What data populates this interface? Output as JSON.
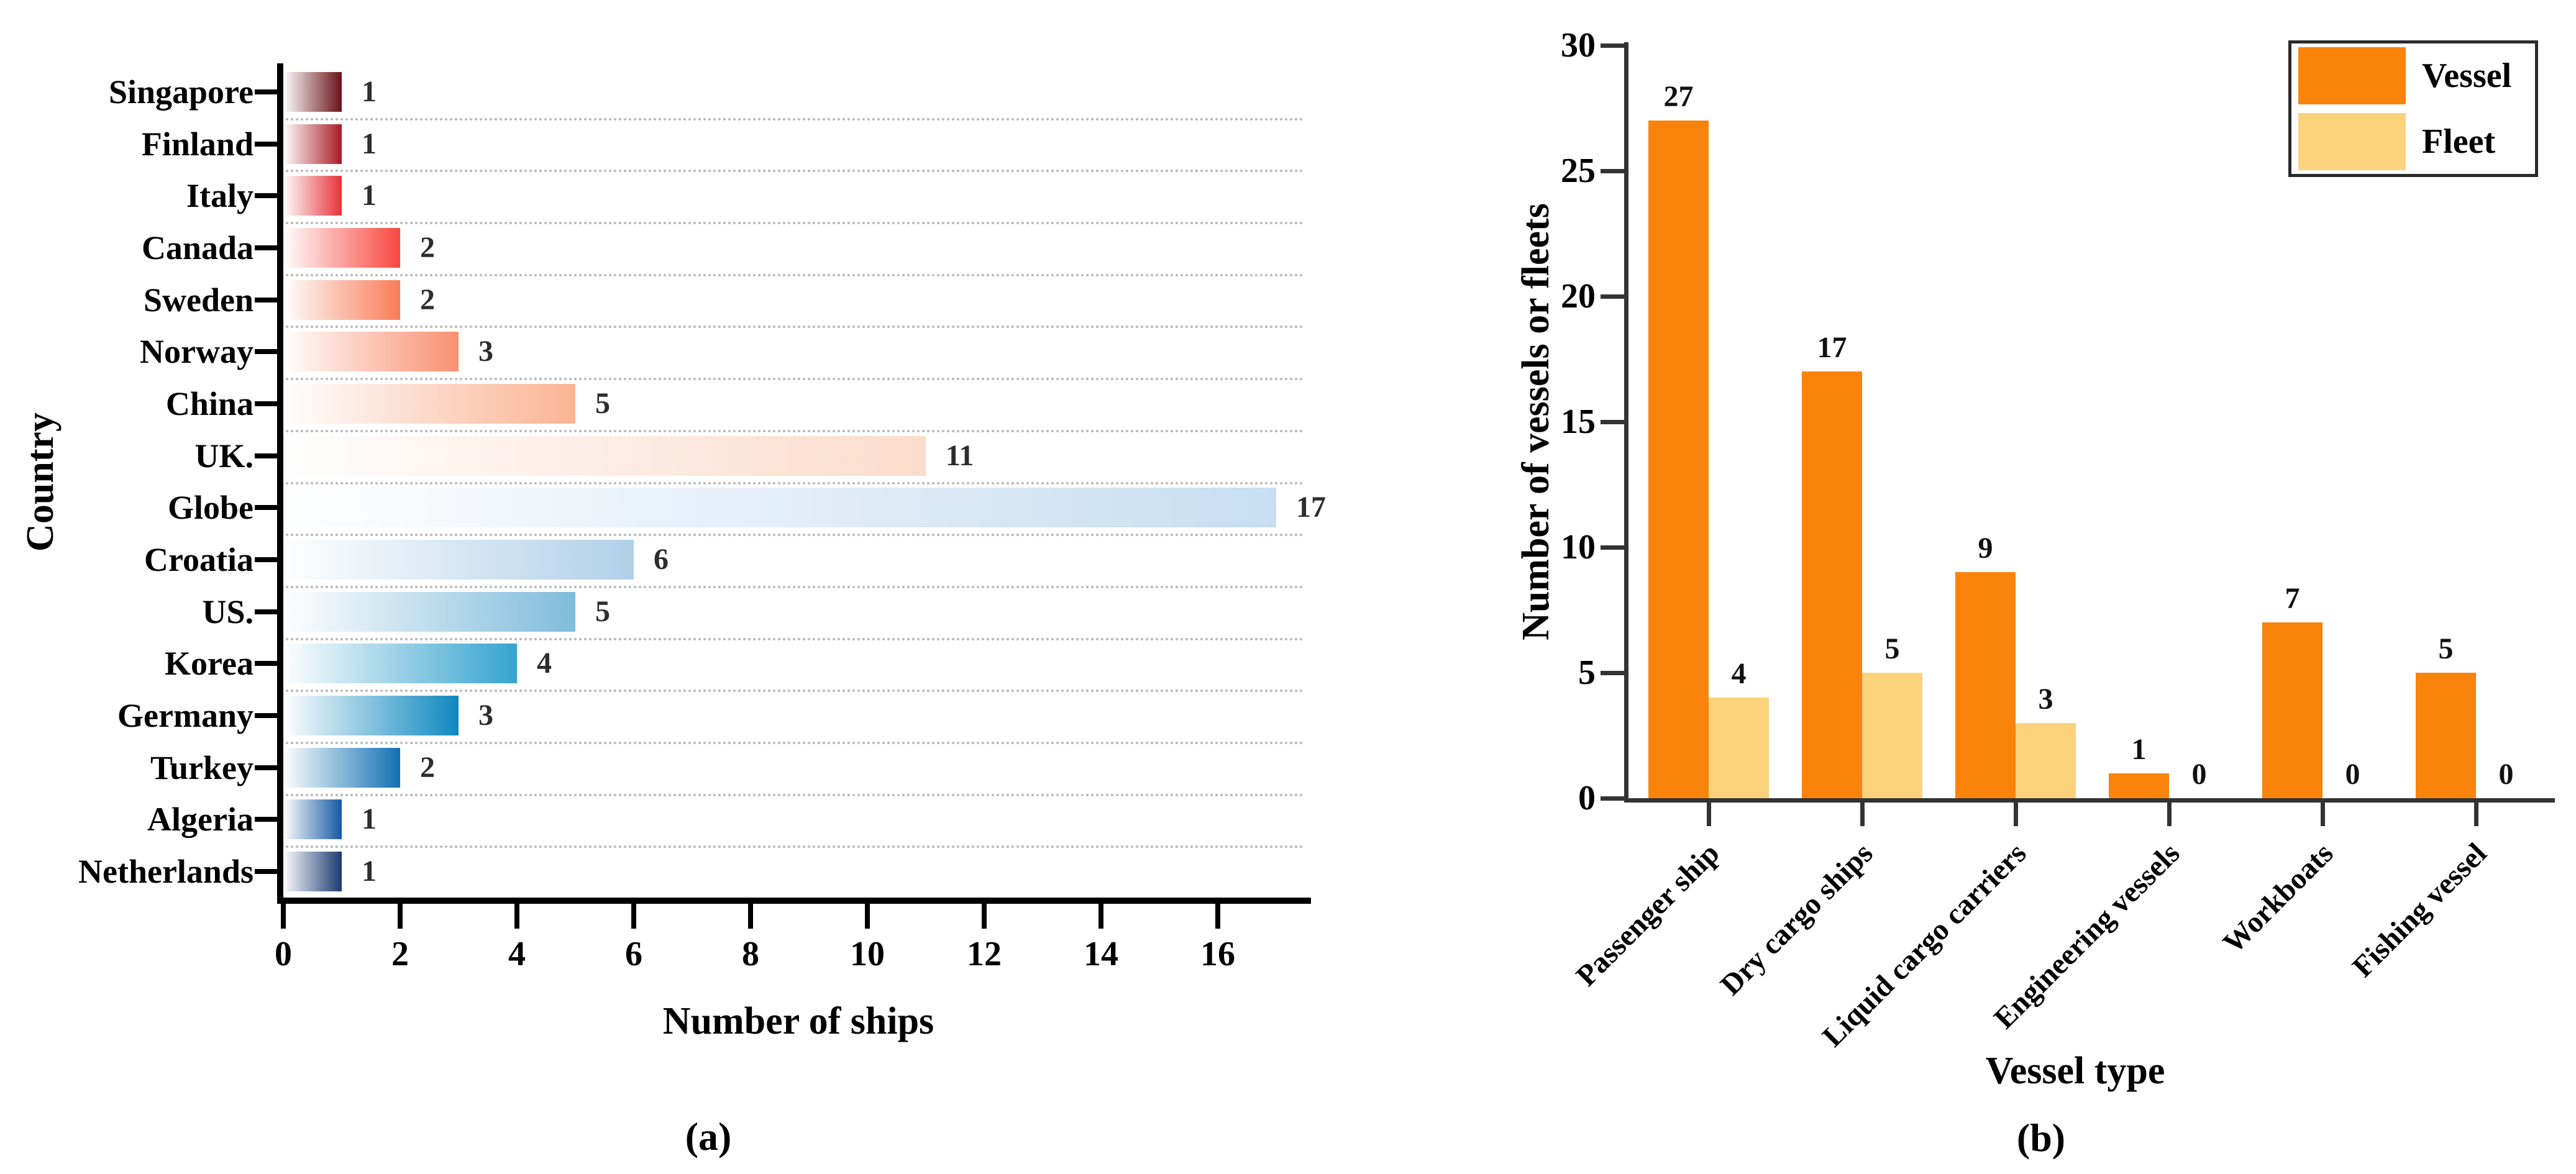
{
  "page": {
    "background": "#ffffff"
  },
  "chart_data": [
    {
      "id": "a",
      "type": "bar",
      "orientation": "horizontal",
      "caption": "(a)",
      "xlabel": "Number of ships",
      "ylabel": "Country",
      "categories": [
        "Singapore",
        "Finland",
        "Italy",
        "Canada",
        "Sweden",
        "Norway",
        "China",
        "UK.",
        "Globe",
        "Croatia",
        "US.",
        "Korea",
        "Germany",
        "Turkey",
        "Algeria",
        "Netherlands"
      ],
      "values": [
        1,
        1,
        1,
        2,
        2,
        3,
        5,
        11,
        17,
        6,
        5,
        4,
        3,
        2,
        1,
        1
      ],
      "bar_colors": [
        "#691218",
        "#A81C24",
        "#E73339",
        "#F8473E",
        "#F97C58",
        "#F99070",
        "#FAB493",
        "#FBDCCB",
        "#C7DEF1",
        "#B0D0E8",
        "#7FBCDB",
        "#35A3CF",
        "#0E87C0",
        "#1170B4",
        "#1559A3",
        "#1B3A70"
      ],
      "gradient_start": "#fefefe",
      "xlim": [
        0,
        17.5
      ],
      "xticks": [
        0,
        2,
        4,
        6,
        8,
        10,
        12,
        14,
        16
      ],
      "grid": "horizontal-dotted",
      "grid_color": "#b9b9b9",
      "value_label_color": "#2d2d2d"
    },
    {
      "id": "b",
      "type": "bar",
      "orientation": "vertical-grouped",
      "caption": "(b)",
      "xlabel": "Vessel type",
      "ylabel": "Number of vessels or fleets",
      "categories": [
        "Passenger ship",
        "Dry cargo ships",
        "Liquid cargo carriers",
        "Engineering vessels",
        "Workboats",
        "Fishing vessel"
      ],
      "series": [
        {
          "name": "Vessel",
          "color": "#F9830B",
          "values": [
            27,
            17,
            9,
            1,
            7,
            5
          ]
        },
        {
          "name": "Fleet",
          "color": "#FCD37C",
          "values": [
            4,
            5,
            3,
            0,
            0,
            0
          ]
        }
      ],
      "ylim": [
        0,
        30
      ],
      "yticks": [
        0,
        5,
        10,
        15,
        20,
        25,
        30
      ],
      "legend_position": "top-right",
      "grid": false,
      "axis_color": "#333333"
    }
  ]
}
